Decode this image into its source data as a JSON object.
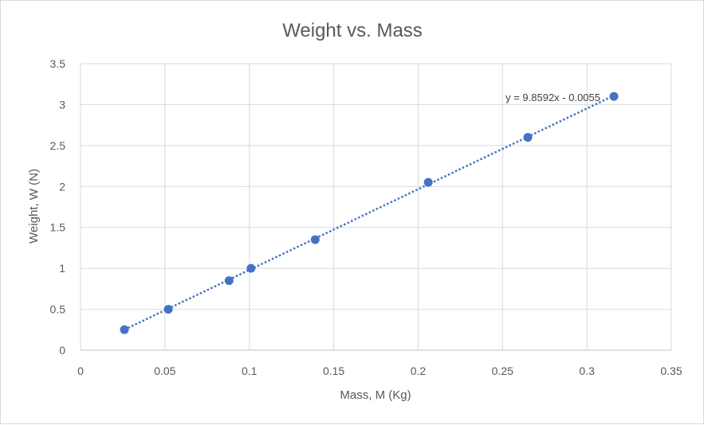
{
  "chart_data": {
    "type": "scatter",
    "title": "Weight vs. Mass",
    "xlabel": "Mass, M (Kg)",
    "ylabel": "Weight, W (N)",
    "xlim": [
      0,
      0.35
    ],
    "ylim": [
      0,
      3.5
    ],
    "xticks": [
      0,
      0.05,
      0.1,
      0.15,
      0.2,
      0.25,
      0.3,
      0.35
    ],
    "xtick_labels": [
      "0",
      "0.05",
      "0.1",
      "0.15",
      "0.2",
      "0.25",
      "0.3",
      "0.35"
    ],
    "yticks": [
      0,
      0.5,
      1,
      1.5,
      2,
      2.5,
      3,
      3.5
    ],
    "ytick_labels": [
      "0",
      "0.5",
      "1",
      "1.5",
      "2",
      "2.5",
      "3",
      "3.5"
    ],
    "grid": true,
    "legend": "none",
    "point_color": "#4472c4",
    "trendline_color": "#4472c4",
    "points": [
      {
        "x": 0.026,
        "y": 0.25
      },
      {
        "x": 0.052,
        "y": 0.5
      },
      {
        "x": 0.088,
        "y": 0.85
      },
      {
        "x": 0.101,
        "y": 1.0
      },
      {
        "x": 0.139,
        "y": 1.35
      },
      {
        "x": 0.206,
        "y": 2.05
      },
      {
        "x": 0.265,
        "y": 2.6
      },
      {
        "x": 0.316,
        "y": 3.1
      }
    ],
    "trendline": {
      "type": "linear",
      "style": "dotted",
      "slope": 9.8592,
      "intercept": -0.0055,
      "equation_label": "y = 9.8592x - 0.0055"
    }
  }
}
